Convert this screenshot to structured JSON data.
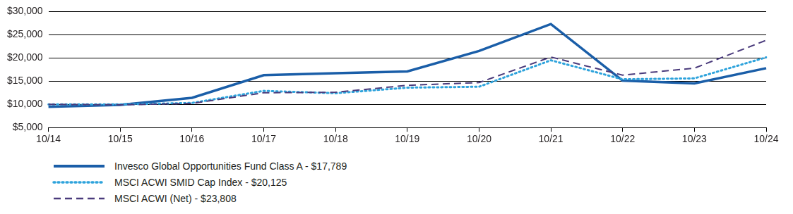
{
  "chart_data": {
    "type": "line",
    "categories": [
      "10/14",
      "10/15",
      "10/16",
      "10/17",
      "10/18",
      "10/19",
      "10/20",
      "10/21",
      "10/22",
      "10/23",
      "10/24"
    ],
    "series": [
      {
        "name": "Invesco Global Opportunities Fund Class A - $17,789",
        "color": "#1a5ea8",
        "line_style": "solid",
        "values": [
          9450,
          9900,
          11400,
          16300,
          16700,
          17100,
          21500,
          27300,
          15100,
          14500,
          17789
        ]
      },
      {
        "name": "MSCI ACWI SMID Cap Index - $20,125",
        "color": "#2ea3dc",
        "line_style": "dotted",
        "values": [
          10000,
          10000,
          10300,
          12900,
          12400,
          13600,
          13800,
          19500,
          15400,
          15600,
          20125
        ]
      },
      {
        "name": "MSCI ACWI (Net) - $23,808",
        "color": "#4a3b7c",
        "line_style": "dashed",
        "values": [
          10000,
          9900,
          10200,
          12500,
          12600,
          14100,
          14700,
          20200,
          16300,
          17800,
          23808
        ]
      }
    ],
    "ylim": [
      5000,
      30000
    ],
    "yticks": [
      {
        "value": 5000,
        "label": "$5,000"
      },
      {
        "value": 10000,
        "label": "$10,000"
      },
      {
        "value": 15000,
        "label": "$15,000"
      },
      {
        "value": 20000,
        "label": "$20,000"
      },
      {
        "value": 25000,
        "label": "$25,000"
      },
      {
        "value": 30000,
        "label": "$30,000"
      }
    ],
    "grid": true,
    "legend": "bottom"
  }
}
